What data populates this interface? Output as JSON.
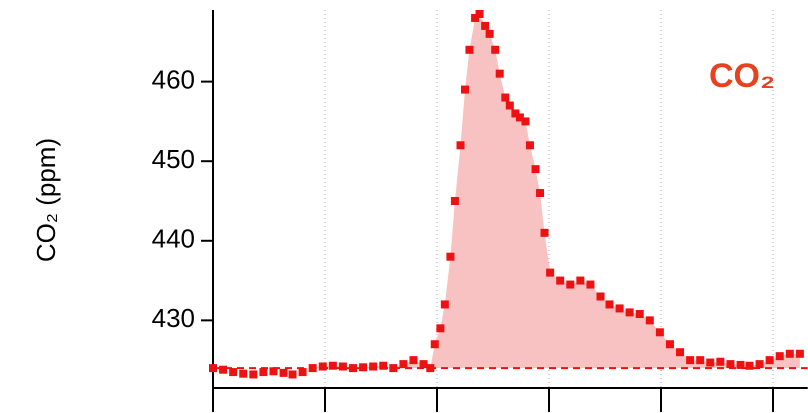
{
  "chart_data": {
    "type": "scatter",
    "ylabel": "CO₂ (ppm)",
    "annotation": "CO₂",
    "annotation_color": "#e8411f",
    "color": "#ee1111",
    "fill_color": "#f9c2c2",
    "baseline": 424,
    "xlim": [
      0,
      5.31
    ],
    "xticks": [
      0,
      1,
      2,
      3,
      4,
      5
    ],
    "ylim": [
      421.5,
      469
    ],
    "yticks": [
      430,
      440,
      450,
      460
    ],
    "grid": true,
    "x": [
      0,
      0.09,
      0.18,
      0.27,
      0.36,
      0.45,
      0.54,
      0.63,
      0.71,
      0.8,
      0.89,
      0.98,
      1.07,
      1.16,
      1.25,
      1.34,
      1.43,
      1.52,
      1.61,
      1.7,
      1.79,
      1.88,
      1.94,
      1.98,
      2.03,
      2.07,
      2.12,
      2.16,
      2.21,
      2.25,
      2.29,
      2.34,
      2.38,
      2.43,
      2.47,
      2.52,
      2.56,
      2.61,
      2.65,
      2.7,
      2.74,
      2.79,
      2.83,
      2.88,
      2.92,
      2.96,
      3.01,
      3.1,
      3.19,
      3.28,
      3.37,
      3.46,
      3.54,
      3.63,
      3.72,
      3.81,
      3.9,
      3.99,
      4.08,
      4.17,
      4.26,
      4.35,
      4.44,
      4.53,
      4.62,
      4.71,
      4.79,
      4.88,
      4.97,
      5.06,
      5.15,
      5.24
    ],
    "values": [
      424,
      423.8,
      423.5,
      423.3,
      423.2,
      423.5,
      423.6,
      423.4,
      423.2,
      423.5,
      424,
      424.2,
      424.3,
      424.2,
      424,
      424.1,
      424.2,
      424.3,
      424,
      424.5,
      425,
      424.5,
      424,
      427,
      429,
      432,
      438,
      445,
      452,
      459,
      464,
      468,
      468.5,
      467,
      466,
      464,
      461,
      458,
      457,
      456,
      455.5,
      455,
      452,
      449,
      446,
      441,
      436,
      435,
      434.5,
      435,
      434.5,
      433,
      432,
      431.5,
      431,
      430.8,
      430,
      428.5,
      427,
      426,
      425,
      425,
      424.7,
      424.8,
      424.5,
      424.4,
      424.3,
      424.5,
      425,
      425.5,
      425.8,
      425.8
    ]
  }
}
